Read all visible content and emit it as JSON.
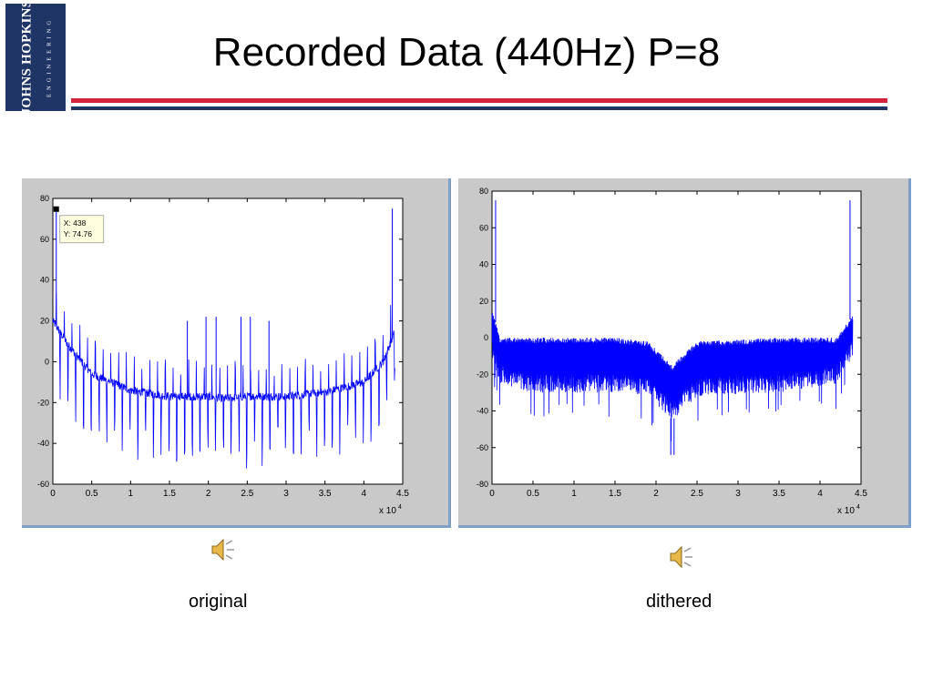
{
  "slide": {
    "title": "Recorded Data (440Hz) P=8",
    "logo": {
      "main": "JOHNS HOPKINS",
      "sub": "ENGINEERING"
    },
    "captions": {
      "left": "original",
      "right": "dithered"
    },
    "icons": {
      "audio": "speaker-icon"
    },
    "colors": {
      "navy": "#1f3565",
      "red": "#d3223b",
      "trace": "#0000ff",
      "panel": "#c9c9c9"
    }
  },
  "chart_data": [
    {
      "type": "line",
      "xlim": [
        0,
        45000
      ],
      "ylim": [
        -60,
        80
      ],
      "xticks": [
        0,
        0.5,
        1,
        1.5,
        2,
        2.5,
        3,
        3.5,
        4,
        4.5
      ],
      "yticks": [
        80,
        60,
        40,
        20,
        0,
        -20,
        -40,
        -60
      ],
      "x_multiplier_label": "x 10",
      "x_multiplier_exp": "4",
      "grid": false,
      "datatip": {
        "x_text": "X: 438",
        "y_text": "Y: 74.76",
        "x": 438,
        "y": 74.76
      },
      "peaks": [
        {
          "x": 438,
          "y": 74.76
        },
        {
          "x": 43660,
          "y": 75
        },
        {
          "x": 19700,
          "y": 22
        },
        {
          "x": 21000,
          "y": 22
        },
        {
          "x": 24200,
          "y": 22
        },
        {
          "x": 25400,
          "y": 22
        },
        {
          "x": 17300,
          "y": 20
        },
        {
          "x": 27800,
          "y": 20
        }
      ],
      "baseline": [
        {
          "x": 0,
          "y": 20
        },
        {
          "x": 2000,
          "y": 8
        },
        {
          "x": 5000,
          "y": -6
        },
        {
          "x": 10000,
          "y": -14
        },
        {
          "x": 15000,
          "y": -17
        },
        {
          "x": 20000,
          "y": -17
        },
        {
          "x": 22000,
          "y": -18
        },
        {
          "x": 25000,
          "y": -17
        },
        {
          "x": 30000,
          "y": -17
        },
        {
          "x": 35000,
          "y": -15
        },
        {
          "x": 40000,
          "y": -10
        },
        {
          "x": 42500,
          "y": 0
        },
        {
          "x": 44000,
          "y": 15
        }
      ]
    },
    {
      "type": "line",
      "xlim": [
        0,
        45000
      ],
      "ylim": [
        -80,
        80
      ],
      "xticks": [
        0,
        0.5,
        1,
        1.5,
        2,
        2.5,
        3,
        3.5,
        4,
        4.5
      ],
      "yticks": [
        80,
        60,
        40,
        20,
        0,
        -20,
        -40,
        -60,
        -80
      ],
      "x_multiplier_label": "x 10",
      "x_multiplier_exp": "4",
      "grid": false,
      "peaks": [
        {
          "x": 438,
          "y": 75
        },
        {
          "x": 43660,
          "y": 75
        }
      ],
      "noise_band": [
        {
          "x": 0,
          "y_top": 15,
          "y_bottom": -10
        },
        {
          "x": 1000,
          "y_top": 0,
          "y_bottom": -25
        },
        {
          "x": 5000,
          "y_top": 0,
          "y_bottom": -30
        },
        {
          "x": 15000,
          "y_top": 0,
          "y_bottom": -30
        },
        {
          "x": 19000,
          "y_top": -2,
          "y_bottom": -32
        },
        {
          "x": 22000,
          "y_top": -15,
          "y_bottom": -45
        },
        {
          "x": 25000,
          "y_top": -2,
          "y_bottom": -32
        },
        {
          "x": 35000,
          "y_top": 0,
          "y_bottom": -30
        },
        {
          "x": 42000,
          "y_top": 0,
          "y_bottom": -25
        },
        {
          "x": 44000,
          "y_top": 12,
          "y_bottom": -10
        }
      ],
      "min_spikes": [
        {
          "x": 21800,
          "y": -64
        },
        {
          "x": 22200,
          "y": -64
        }
      ]
    }
  ]
}
